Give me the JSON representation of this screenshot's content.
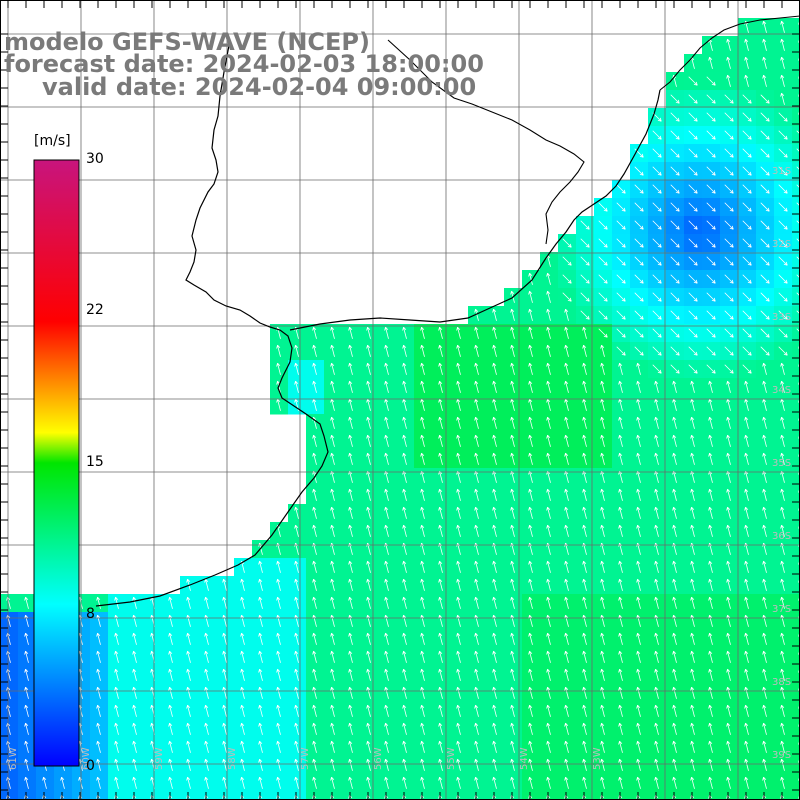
{
  "title": {
    "line1": "modelo GEFS-WAVE (NCEP)",
    "line2": "forecast date: 2024-02-03 18:00:00",
    "line3": "valid date: 2024-02-04 09:00:00"
  },
  "colorbar": {
    "unit": "[m/s]",
    "min": 0,
    "max": 30,
    "ticks": [
      30,
      22,
      15,
      8,
      0
    ],
    "stops": [
      {
        "v": 0,
        "color": "#0000ff"
      },
      {
        "v": 8,
        "color": "#00ffff"
      },
      {
        "v": 15,
        "color": "#00e600"
      },
      {
        "v": 16.5,
        "color": "#ffff00"
      },
      {
        "v": 22,
        "color": "#ff0000"
      },
      {
        "v": 30,
        "color": "#c8147d"
      }
    ]
  },
  "map": {
    "field": "wind speed and direction",
    "units": "m/s",
    "lon_labels_bottom": [
      "61W",
      "60W",
      "59W",
      "58W",
      "57W",
      "56W",
      "55W",
      "54W",
      "53W"
    ],
    "lat_labels_right": [
      "31S",
      "32S",
      "33S",
      "34S",
      "35S",
      "36S",
      "37S",
      "38S",
      "39S"
    ],
    "colors": {
      "land": "#ffffff",
      "coastline": "#000000",
      "grid": "#6a6a6a",
      "title_text": "#7a7a7a",
      "wind_arrow": "#ffffff"
    }
  }
}
